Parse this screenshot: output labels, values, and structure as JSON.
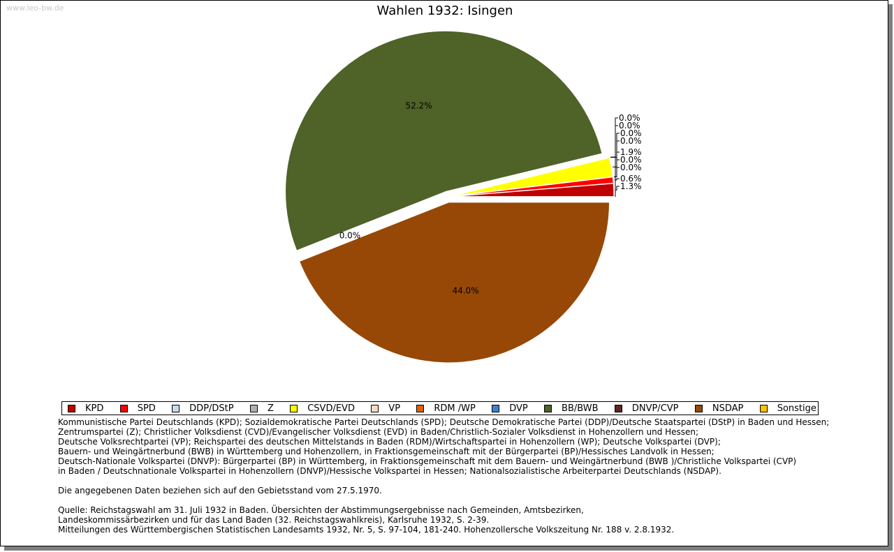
{
  "watermark": "www.leo-bw.de",
  "chart_data": {
    "type": "pie",
    "title": "Wahlen 1932: Isingen",
    "slices": [
      {
        "name": "KPD",
        "value": 1.3,
        "label": "1.3%",
        "color": "#c00000"
      },
      {
        "name": "SPD",
        "value": 0.6,
        "label": "0.6%",
        "color": "#ff0000"
      },
      {
        "name": "DDP/DStP",
        "value": 0.0,
        "label": "0.0%",
        "color": "#c8d8f0"
      },
      {
        "name": "Z",
        "value": 0.0,
        "label": "0.0%",
        "color": "#b0b0b0"
      },
      {
        "name": "CSVD/EVD",
        "value": 1.9,
        "label": "1.9%",
        "color": "#ffff00"
      },
      {
        "name": "VP",
        "value": 0.0,
        "label": "0.0%",
        "color": "#ffd8c0"
      },
      {
        "name": "RDM /WP",
        "value": 0.0,
        "label": "0.0%",
        "color": "#e06000"
      },
      {
        "name": "DVP",
        "value": 0.0,
        "label": "0.0%",
        "color": "#4080d0"
      },
      {
        "name": "BB/BWB",
        "value": 52.2,
        "label": "52.2%",
        "color": "#4f6228"
      },
      {
        "name": "DNVP/CVP",
        "value": 0.0,
        "label": "0.0%",
        "color": "#632523"
      },
      {
        "name": "NSDAP",
        "value": 44.0,
        "label": "44.0%",
        "color": "#974806"
      },
      {
        "name": "Sonstige",
        "value": 0.0,
        "label": "0.0%",
        "color": "#ffc000"
      }
    ]
  },
  "notes": {
    "lines": [
      "Kommunistische Partei Deutschlands (KPD); Sozialdemokratische Partei Deutschlands (SPD); Deutsche Demokratische Partei (DDP)/Deutsche Staatspartei (DStP) in Baden und Hessen;",
      "Zentrumspartei (Z); Christlicher Volksdienst (CVD)/Evangelischer Volksdienst (EVD) in Baden/Christlich-Sozialer Volksdienst in Hohenzollern und Hessen;",
      "Deutsche Volksrechtpartei (VP); Reichspartei des deutschen Mittelstands in Baden (RDM)/Wirtschaftspartei in Hohenzollern (WP); Deutsche Volkspartei (DVP);",
      "Bauern- und Weingärtnerbund (BWB) in Württemberg und Hohenzollern, in Fraktionsgemeinschaft mit der Bürgerpartei (BP)/Hessisches Landvolk in Hessen;",
      "Deutsch-Nationale Volkspartei (DNVP): Bürgerpartei (BP) in Württemberg, in Fraktionsgemeinschaft mit dem Bauern- und Weingärtnerbund (BWB )/Christliche Volkspartei (CVP)",
      "in Baden / Deutschnationale Volkspartei in Hohenzollern (DNVP)/Hessische Volkspartei in Hessen; Nationalsozialistische Arbeiterpartei Deutschlands (NSDAP)."
    ],
    "gebietsstand": "Die angegebenen Daten beziehen sich auf den Gebietsstand vom 27.5.1970.",
    "source_lines": [
      "Quelle: Reichstagswahl am 31. Juli 1932 in Baden. Übersichten der Abstimmungsergebnisse nach Gemeinden, Amtsbezirken,",
      "Landeskommissärbezirken und für das Land Baden (32. Reichstagswahlkreis), Karlsruhe 1932, S. 2-39.",
      "Mitteilungen des Württembergischen Statistischen Landesamts 1932, Nr. 5, S. 97-104, 181-240. Hohenzollersche Volkszeitung Nr. 188 v. 2.8.1932."
    ]
  }
}
